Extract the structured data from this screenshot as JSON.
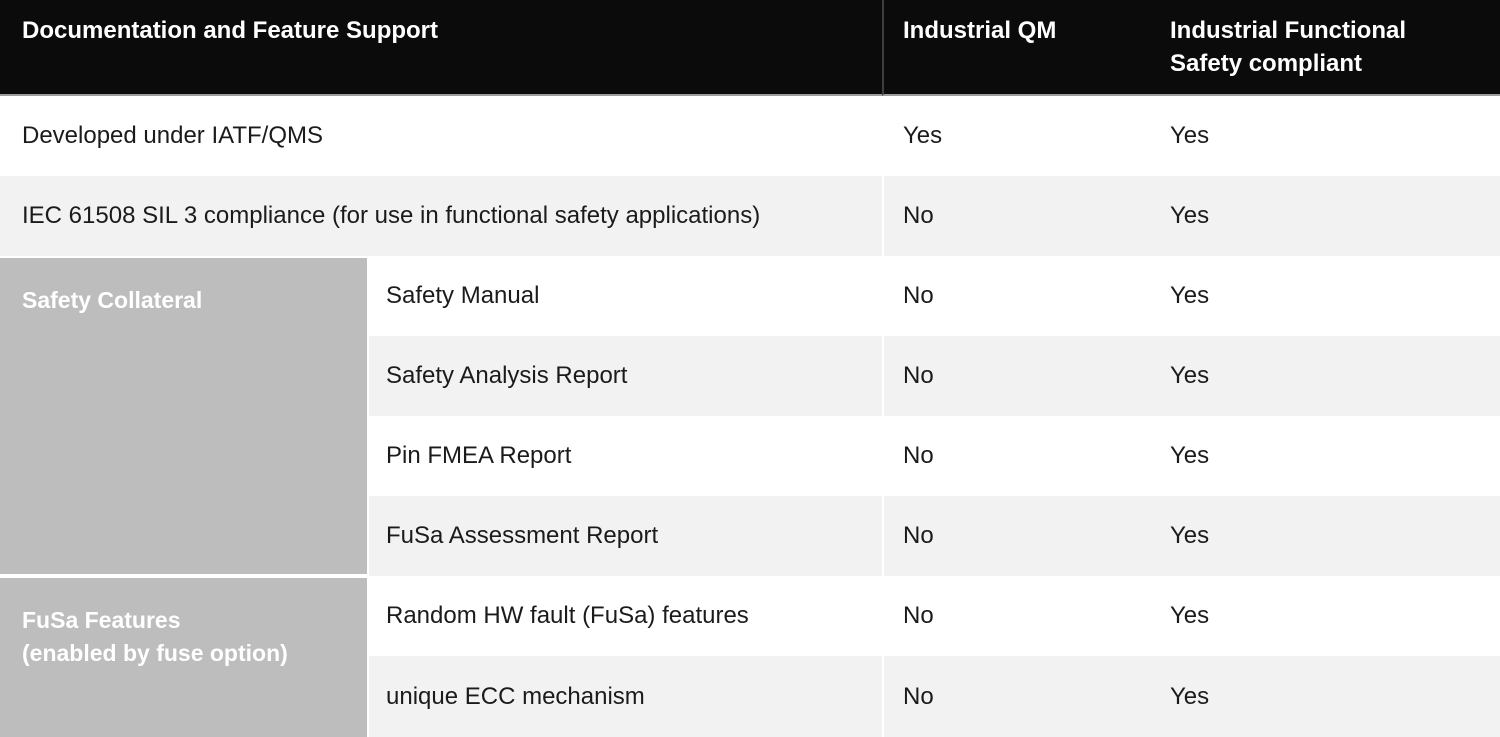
{
  "colors": {
    "header_bg": "#0b0b0b",
    "header_text": "#ffffff",
    "header_divider": "#3f3f3f",
    "header_bottom_line": "#9c9c9c",
    "row_alt_bg": "#f2f2f2",
    "group_cell_bg": "#bdbdbd",
    "group_cell_text": "#ffffff",
    "body_text": "#1b1b1b"
  },
  "header": {
    "col1": "Documentation and Feature Support",
    "col2": "Industrial QM",
    "col3": "Industrial Functional\nSafety compliant"
  },
  "groups": [
    {
      "label": "Safety Collateral"
    },
    {
      "label": "FuSa Features\n(enabled by fuse option)"
    }
  ],
  "rows": [
    {
      "feature": "Developed under IATF/QMS",
      "industrial_qm": "Yes",
      "industrial_fusa": "Yes"
    },
    {
      "feature": "IEC 61508 SIL 3 compliance (for use in functional safety applications)",
      "industrial_qm": "No",
      "industrial_fusa": "Yes"
    },
    {
      "feature": "Safety Manual",
      "industrial_qm": "No",
      "industrial_fusa": "Yes"
    },
    {
      "feature": "Safety Analysis Report",
      "industrial_qm": "No",
      "industrial_fusa": "Yes"
    },
    {
      "feature": "Pin FMEA Report",
      "industrial_qm": "No",
      "industrial_fusa": "Yes"
    },
    {
      "feature": "FuSa Assessment Report",
      "industrial_qm": "No",
      "industrial_fusa": "Yes"
    },
    {
      "feature": "Random HW fault (FuSa) features",
      "industrial_qm": "No",
      "industrial_fusa": "Yes"
    },
    {
      "feature": "unique ECC mechanism",
      "industrial_qm": "No",
      "industrial_fusa": "Yes"
    }
  ]
}
